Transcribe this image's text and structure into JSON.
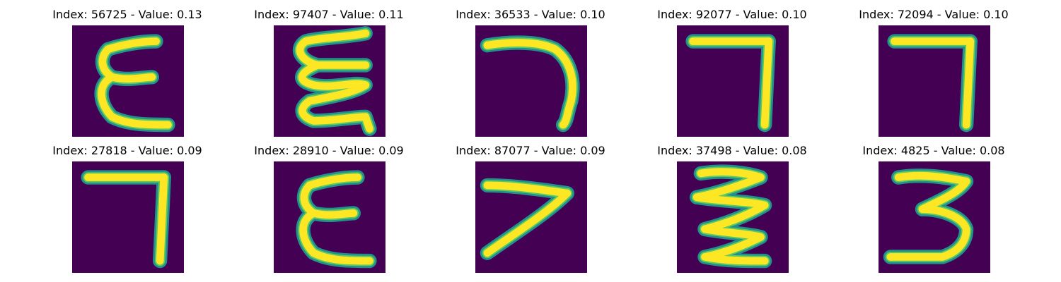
{
  "colors": {
    "background": "#440154",
    "stroke_edge": "#21918c",
    "stroke_mid": "#5ec962",
    "stroke_core": "#fde725"
  },
  "panels": [
    {
      "label": "Index: 56725 - Value: 0.13",
      "glyph": "epsilon-shape"
    },
    {
      "label": "Index: 97407 - Value: 0.11",
      "glyph": "squiggle-e-shape"
    },
    {
      "label": "Index: 36533 - Value: 0.10",
      "glyph": "hook-shape"
    },
    {
      "label": "Index: 92077 - Value: 0.10",
      "glyph": "seven-angle-shape"
    },
    {
      "label": "Index: 72094 - Value: 0.10",
      "glyph": "seven-angle-shape"
    },
    {
      "label": "Index: 27818 - Value: 0.09",
      "glyph": "seven-angle-shape"
    },
    {
      "label": "Index: 28910 - Value: 0.09",
      "glyph": "epsilon-shape"
    },
    {
      "label": "Index: 87077 - Value: 0.09",
      "glyph": "seven-slant-shape"
    },
    {
      "label": "Index: 37498 - Value: 0.08",
      "glyph": "zigzag-shape"
    },
    {
      "label": "Index: 4825 - Value: 0.08",
      "glyph": "three-shape"
    }
  ]
}
